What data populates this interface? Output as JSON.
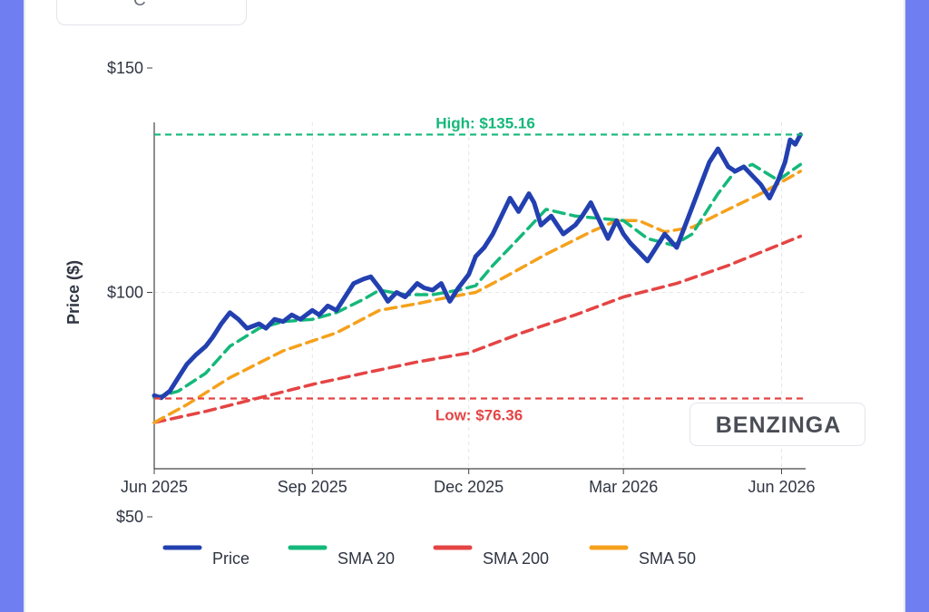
{
  "header": {
    "ticker": "C"
  },
  "watermark": "BENZINGA",
  "colors": {
    "price": "#2340b0",
    "sma20": "#14b87a",
    "sma200": "#e54444",
    "sma50": "#f5a11c",
    "high": "#14b87a",
    "low": "#e54444"
  },
  "chart_data": {
    "type": "line",
    "ylabel": "Price ($)",
    "ylim": [
      50,
      150
    ],
    "y_ticks": [
      "$150",
      "$100",
      "$50"
    ],
    "y_tick_values": [
      150,
      100,
      50
    ],
    "x_ticks": [
      "Jun 2025",
      "Sep 2025",
      "Dec 2025",
      "Mar 2026",
      "Jun 2026"
    ],
    "xlim": [
      "2025-06-01",
      "2026-06-15"
    ],
    "grid": true,
    "legend_position": "bottom",
    "annotations": {
      "high": {
        "label": "High: $135.16",
        "value": 135.16
      },
      "low": {
        "label": "Low: $76.36",
        "value": 76.36
      }
    },
    "series": [
      {
        "name": "Price",
        "points": [
          [
            "2025-06-01",
            77
          ],
          [
            "2025-06-05",
            76.5
          ],
          [
            "2025-06-10",
            78
          ],
          [
            "2025-06-15",
            81
          ],
          [
            "2025-06-20",
            84
          ],
          [
            "2025-06-25",
            86
          ],
          [
            "2025-07-01",
            88
          ],
          [
            "2025-07-05",
            90
          ],
          [
            "2025-07-10",
            93
          ],
          [
            "2025-07-15",
            95.5
          ],
          [
            "2025-07-20",
            94
          ],
          [
            "2025-07-25",
            92
          ],
          [
            "2025-08-01",
            93
          ],
          [
            "2025-08-05",
            92
          ],
          [
            "2025-08-10",
            94
          ],
          [
            "2025-08-15",
            93.5
          ],
          [
            "2025-08-20",
            95
          ],
          [
            "2025-08-25",
            94
          ],
          [
            "2025-09-01",
            96
          ],
          [
            "2025-09-05",
            95
          ],
          [
            "2025-09-10",
            97
          ],
          [
            "2025-09-15",
            96
          ],
          [
            "2025-09-20",
            99
          ],
          [
            "2025-09-25",
            102
          ],
          [
            "2025-10-01",
            103
          ],
          [
            "2025-10-05",
            103.5
          ],
          [
            "2025-10-10",
            101
          ],
          [
            "2025-10-15",
            98
          ],
          [
            "2025-10-20",
            100
          ],
          [
            "2025-10-25",
            99
          ],
          [
            "2025-11-01",
            102
          ],
          [
            "2025-11-05",
            101
          ],
          [
            "2025-11-10",
            100.5
          ],
          [
            "2025-11-15",
            102
          ],
          [
            "2025-11-20",
            98
          ],
          [
            "2025-11-25",
            101
          ],
          [
            "2025-12-01",
            104
          ],
          [
            "2025-12-05",
            108
          ],
          [
            "2025-12-10",
            110
          ],
          [
            "2025-12-15",
            113
          ],
          [
            "2025-12-20",
            117
          ],
          [
            "2025-12-25",
            121
          ],
          [
            "2025-12-30",
            118
          ],
          [
            "2026-01-05",
            122
          ],
          [
            "2026-01-08",
            120
          ],
          [
            "2026-01-12",
            115
          ],
          [
            "2026-01-18",
            117
          ],
          [
            "2026-01-25",
            113
          ],
          [
            "2026-02-01",
            115
          ],
          [
            "2026-02-05",
            117
          ],
          [
            "2026-02-10",
            120
          ],
          [
            "2026-02-15",
            116
          ],
          [
            "2026-02-20",
            112
          ],
          [
            "2026-02-25",
            116
          ],
          [
            "2026-03-01",
            113
          ],
          [
            "2026-03-05",
            111
          ],
          [
            "2026-03-10",
            109
          ],
          [
            "2026-03-15",
            107
          ],
          [
            "2026-03-20",
            110
          ],
          [
            "2026-03-25",
            113
          ],
          [
            "2026-04-01",
            110
          ],
          [
            "2026-04-05",
            114
          ],
          [
            "2026-04-10",
            119
          ],
          [
            "2026-04-15",
            124
          ],
          [
            "2026-04-20",
            129
          ],
          [
            "2026-04-25",
            132
          ],
          [
            "2026-05-01",
            128
          ],
          [
            "2026-05-05",
            127
          ],
          [
            "2026-05-10",
            128
          ],
          [
            "2026-05-15",
            126
          ],
          [
            "2026-05-20",
            124
          ],
          [
            "2026-05-25",
            121
          ],
          [
            "2026-05-30",
            125
          ],
          [
            "2026-06-03",
            129
          ],
          [
            "2026-06-06",
            134
          ],
          [
            "2026-06-09",
            133
          ],
          [
            "2026-06-12",
            135.16
          ]
        ]
      },
      {
        "name": "SMA 20",
        "points": [
          [
            "2025-06-01",
            76.5
          ],
          [
            "2025-06-15",
            78
          ],
          [
            "2025-07-01",
            82
          ],
          [
            "2025-07-15",
            88
          ],
          [
            "2025-08-01",
            92
          ],
          [
            "2025-08-15",
            93.5
          ],
          [
            "2025-09-01",
            94
          ],
          [
            "2025-09-15",
            95.5
          ],
          [
            "2025-10-01",
            98.5
          ],
          [
            "2025-10-10",
            100.5
          ],
          [
            "2025-10-25",
            99.5
          ],
          [
            "2025-11-10",
            99.5
          ],
          [
            "2025-11-25",
            100.5
          ],
          [
            "2025-12-05",
            101.5
          ],
          [
            "2025-12-15",
            106
          ],
          [
            "2025-12-30",
            112
          ],
          [
            "2026-01-15",
            118.5
          ],
          [
            "2026-02-01",
            117
          ],
          [
            "2026-02-15",
            116.5
          ],
          [
            "2026-03-01",
            116
          ],
          [
            "2026-03-15",
            112
          ],
          [
            "2026-03-30",
            110.5
          ],
          [
            "2026-04-10",
            113
          ],
          [
            "2026-04-25",
            122
          ],
          [
            "2026-05-05",
            127
          ],
          [
            "2026-05-15",
            128.5
          ],
          [
            "2026-05-30",
            125
          ],
          [
            "2026-06-12",
            128.5
          ]
        ]
      },
      {
        "name": "SMA 200",
        "points": [
          [
            "2025-06-01",
            71
          ],
          [
            "2025-07-01",
            73.5
          ],
          [
            "2025-08-01",
            76.5
          ],
          [
            "2025-09-01",
            79.5
          ],
          [
            "2025-10-01",
            82
          ],
          [
            "2025-11-01",
            84.5
          ],
          [
            "2025-12-01",
            86.5
          ],
          [
            "2026-01-01",
            91
          ],
          [
            "2026-02-01",
            95
          ],
          [
            "2026-03-01",
            99
          ],
          [
            "2026-04-01",
            102
          ],
          [
            "2026-05-01",
            106
          ],
          [
            "2026-06-12",
            112.5
          ]
        ]
      },
      {
        "name": "SMA 50",
        "points": [
          [
            "2025-06-01",
            71
          ],
          [
            "2025-06-20",
            75
          ],
          [
            "2025-07-15",
            81
          ],
          [
            "2025-08-15",
            87
          ],
          [
            "2025-09-15",
            91
          ],
          [
            "2025-10-10",
            96
          ],
          [
            "2025-11-01",
            97.5
          ],
          [
            "2025-11-20",
            99
          ],
          [
            "2025-12-05",
            100
          ],
          [
            "2025-12-20",
            103
          ],
          [
            "2026-01-15",
            108.5
          ],
          [
            "2026-02-10",
            113.5
          ],
          [
            "2026-02-25",
            116
          ],
          [
            "2026-03-10",
            116
          ],
          [
            "2026-03-25",
            113.5
          ],
          [
            "2026-04-10",
            114.5
          ],
          [
            "2026-05-01",
            118.5
          ],
          [
            "2026-05-20",
            122
          ],
          [
            "2026-06-12",
            127
          ]
        ]
      }
    ]
  }
}
